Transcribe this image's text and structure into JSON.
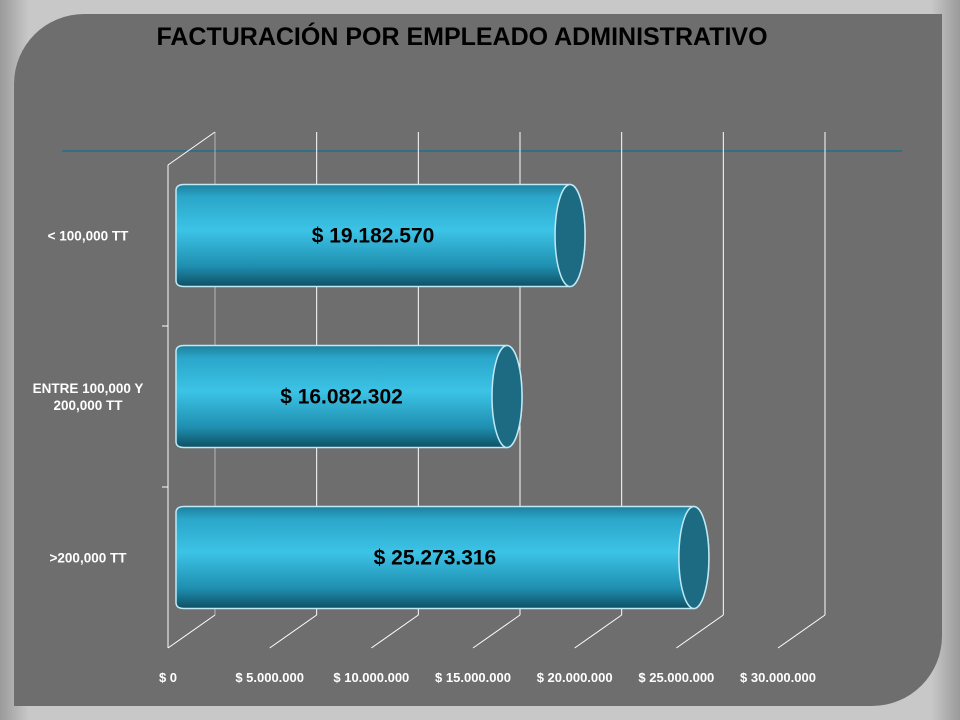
{
  "chart_data": {
    "type": "bar",
    "orientation": "horizontal",
    "title": "FACTURACIÓN POR EMPLEADO ADMINISTRATIVO",
    "categories": [
      "< 100,000 TT",
      "ENTRE 100,000 Y 200,000 TT",
      ">200,000 TT"
    ],
    "values": [
      19182570,
      16082302,
      25273316
    ],
    "data_labels": [
      "$ 19.182.570",
      "$ 16.082.302",
      "$ 25.273.316"
    ],
    "x_ticks": [
      "$ 0",
      "$ 5.000.000",
      "$ 10.000.000",
      "$ 15.000.000",
      "$ 20.000.000",
      "$ 25.000.000",
      "$ 30.000.000"
    ],
    "xlim": [
      0,
      30000000
    ],
    "grid": true,
    "bar_color": "#2fb4d9",
    "bar_end_color": "#1c6b82",
    "background_color": "#6e6e6e"
  }
}
